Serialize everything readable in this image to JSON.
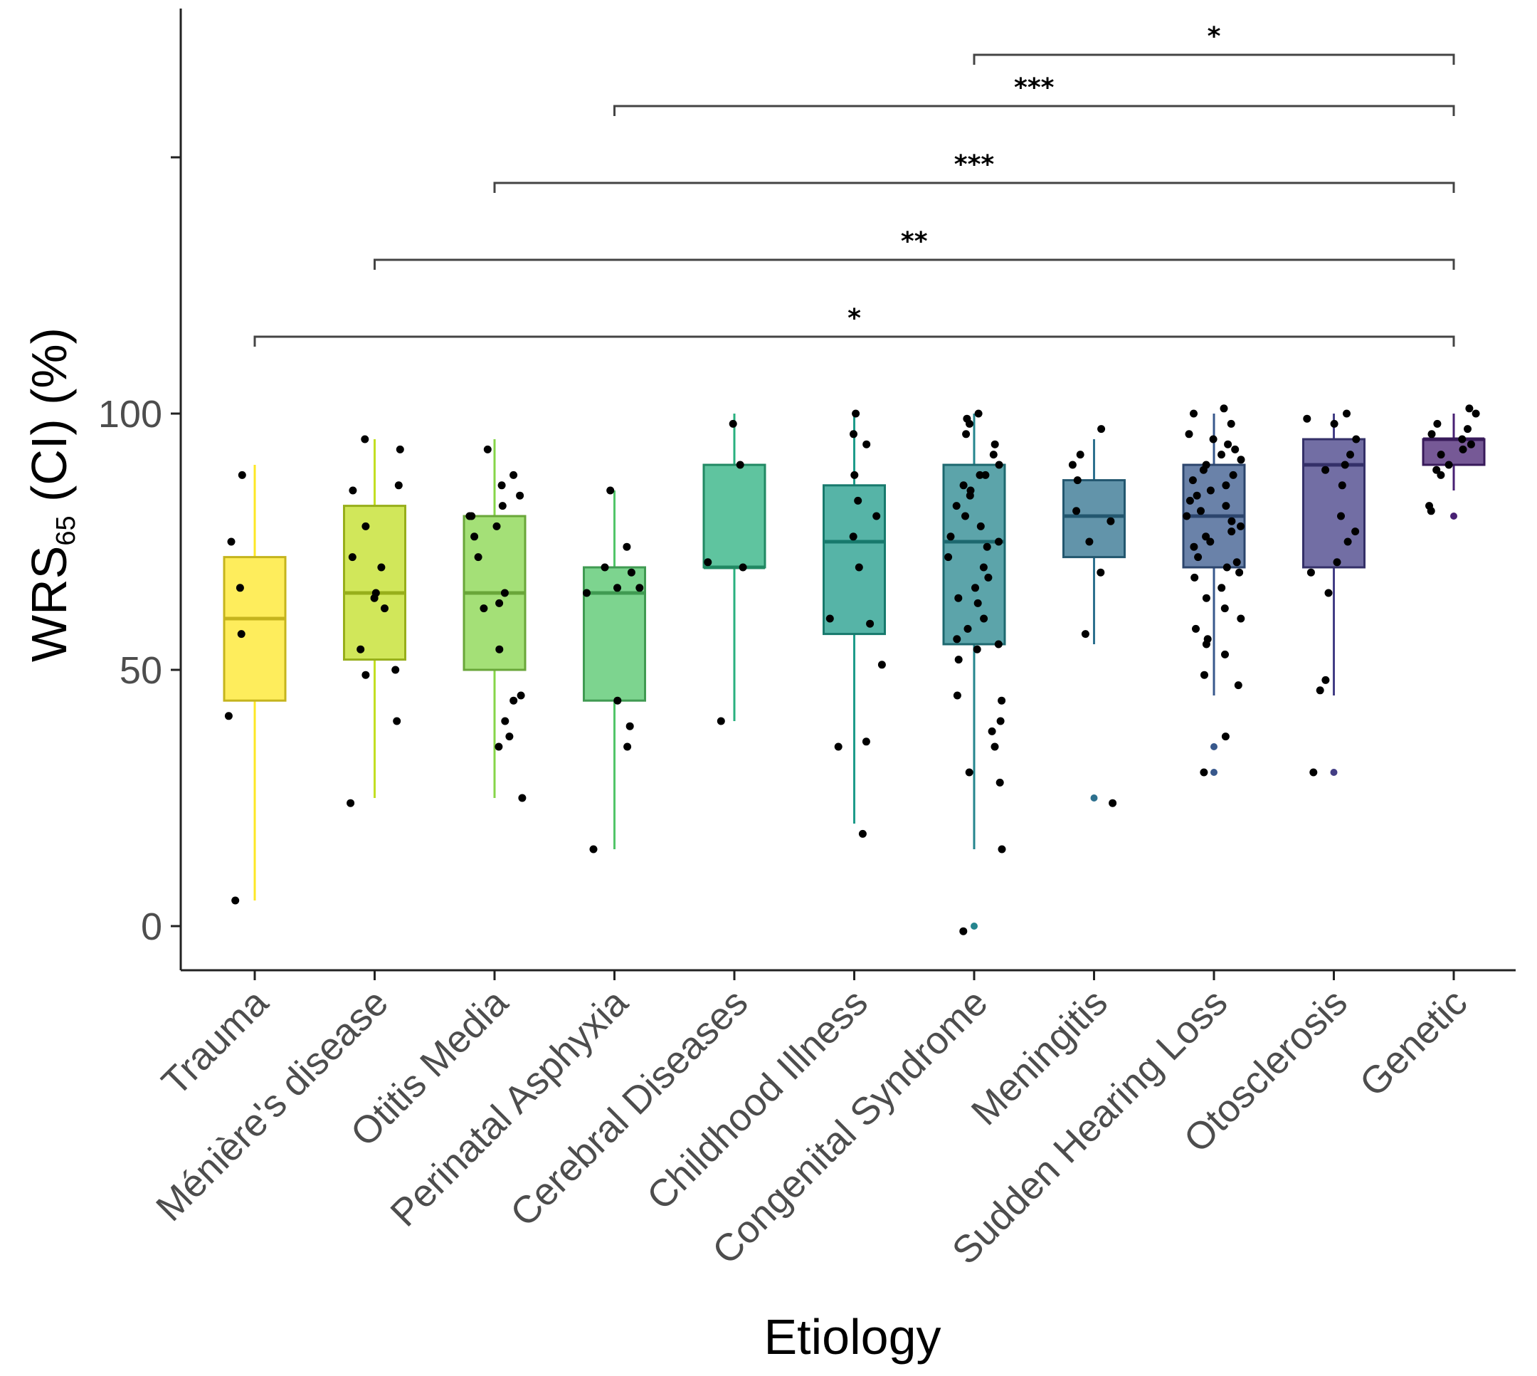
{
  "chart_data": {
    "type": "boxplot",
    "xlabel": "Etiology",
    "ylabel_main": "WRS",
    "ylabel_sub": "65",
    "ylabel_rest": " (CI) (%)",
    "y_ticks": [
      "0",
      "50",
      "100"
    ],
    "y_tick_values": [
      0,
      50,
      100
    ],
    "ylim": [
      -8,
      179
    ],
    "categories": [
      "Trauma",
      "Ménière's disease",
      "Otitis Media",
      "Perinatal Asphyxia",
      "Cerebral Diseases",
      "Childhood Illness",
      "Congenital Syndrome",
      "Meningitis",
      "Sudden Hearing Loss",
      "Otosclerosis",
      "Genetic"
    ],
    "colors": [
      "#FDE725",
      "#C2DF23",
      "#86D549",
      "#52C569",
      "#2AB07F",
      "#1E9B8A",
      "#25858E",
      "#2D708E",
      "#38588C",
      "#433E85",
      "#482173"
    ],
    "boxes": [
      {
        "min": 5,
        "q1": 44,
        "median": 60,
        "q3": 72,
        "max": 90
      },
      {
        "min": 25,
        "q1": 52,
        "median": 65,
        "q3": 82,
        "max": 95
      },
      {
        "min": 25,
        "q1": 50,
        "median": 65,
        "q3": 80,
        "max": 95
      },
      {
        "min": 15,
        "q1": 44,
        "median": 65,
        "q3": 70,
        "max": 85
      },
      {
        "min": 40,
        "q1": 70,
        "median": 70,
        "q3": 90,
        "max": 100
      },
      {
        "min": 20,
        "q1": 57,
        "median": 75,
        "q3": 86,
        "max": 100
      },
      {
        "min": 15,
        "q1": 55,
        "median": 75,
        "q3": 90,
        "max": 100
      },
      {
        "min": 55,
        "q1": 72,
        "median": 80,
        "q3": 87,
        "max": 95
      },
      {
        "min": 45,
        "q1": 70,
        "median": 80,
        "q3": 90,
        "max": 100
      },
      {
        "min": 45,
        "q1": 70,
        "median": 90,
        "q3": 95,
        "max": 100
      },
      {
        "min": 85,
        "q1": 90,
        "median": 95,
        "q3": 95,
        "max": 100
      }
    ],
    "outliers": [
      [],
      [],
      [],
      [],
      [],
      [],
      [
        0
      ],
      [
        25
      ],
      [
        35,
        30
      ],
      [
        30
      ],
      [
        80
      ]
    ],
    "points": [
      [
        88,
        75,
        66,
        57,
        41,
        5
      ],
      [
        95,
        93,
        86,
        85,
        78,
        72,
        70,
        65,
        64,
        62,
        54,
        50,
        49,
        40,
        24
      ],
      [
        93,
        88,
        86,
        84,
        82,
        80,
        80,
        78,
        76,
        72,
        65,
        63,
        62,
        54,
        45,
        44,
        40,
        37,
        35,
        25
      ],
      [
        85,
        74,
        70,
        69,
        66,
        65,
        66,
        44,
        39,
        35,
        15
      ],
      [
        98,
        90,
        71,
        70,
        40
      ],
      [
        100,
        96,
        94,
        88,
        83,
        80,
        76,
        70,
        60,
        59,
        51,
        36,
        35,
        18
      ],
      [
        100,
        99,
        98,
        96,
        94,
        92,
        90,
        88,
        88,
        86,
        85,
        84,
        82,
        80,
        78,
        76,
        75,
        74,
        72,
        70,
        68,
        66,
        64,
        63,
        60,
        58,
        56,
        55,
        54,
        52,
        45,
        44,
        40,
        38,
        35,
        30,
        28,
        15,
        -1
      ],
      [
        97,
        92,
        90,
        87,
        81,
        79,
        75,
        69,
        57,
        24
      ],
      [
        101,
        100,
        98,
        96,
        95,
        94,
        93,
        92,
        91,
        90,
        89,
        88,
        87,
        86,
        85,
        84,
        83,
        82,
        81,
        80,
        79,
        78,
        77,
        76,
        75,
        74,
        72,
        71,
        70,
        69,
        68,
        66,
        64,
        62,
        60,
        58,
        56,
        55,
        53,
        49,
        47,
        37,
        30
      ],
      [
        100,
        99,
        98,
        95,
        92,
        90,
        89,
        86,
        80,
        77,
        75,
        71,
        69,
        65,
        48,
        46,
        30
      ],
      [
        101,
        100,
        98,
        97,
        96,
        95,
        94,
        93,
        92,
        90,
        89,
        88,
        82,
        81
      ]
    ],
    "comparisons": [
      {
        "from": 6,
        "to": 10,
        "y": 170,
        "label": "*"
      },
      {
        "from": 3,
        "to": 10,
        "y": 160,
        "label": "***"
      },
      {
        "from": 2,
        "to": 10,
        "y": 145,
        "label": "***"
      },
      {
        "from": 1,
        "to": 10,
        "y": 130,
        "label": "**"
      },
      {
        "from": 0,
        "to": 10,
        "y": 115,
        "label": "*"
      }
    ]
  }
}
